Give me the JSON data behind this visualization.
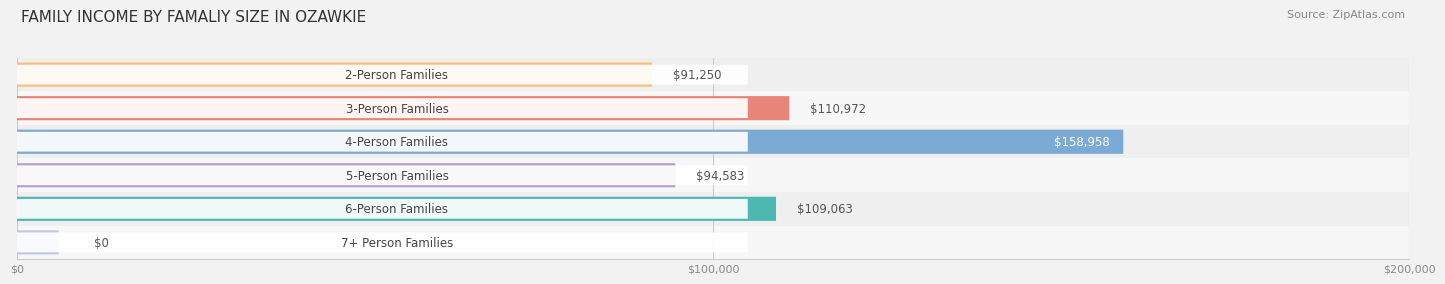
{
  "title": "FAMILY INCOME BY FAMALIY SIZE IN OZAWKIE",
  "source": "Source: ZipAtlas.com",
  "categories": [
    "2-Person Families",
    "3-Person Families",
    "4-Person Families",
    "5-Person Families",
    "6-Person Families",
    "7+ Person Families"
  ],
  "values": [
    91250,
    110972,
    158958,
    94583,
    109063,
    0
  ],
  "bar_colors": [
    "#f5c07a",
    "#e8857a",
    "#7baad4",
    "#b89fcc",
    "#4db8b2",
    "#c0c8e8"
  ],
  "label_colors": [
    "#555555",
    "#555555",
    "#ffffff",
    "#555555",
    "#555555",
    "#555555"
  ],
  "xlim": [
    0,
    200000
  ],
  "xtick_labels": [
    "$0",
    "$100,000",
    "$200,000"
  ],
  "xtick_values": [
    0,
    100000,
    200000
  ],
  "bar_height": 0.72,
  "title_fontsize": 11,
  "source_fontsize": 8,
  "label_fontsize": 8.5,
  "value_fontsize": 8.5,
  "row_colors": [
    "#efefef",
    "#f7f7f7",
    "#efefef",
    "#f7f7f7",
    "#efefef",
    "#f7f7f7"
  ]
}
